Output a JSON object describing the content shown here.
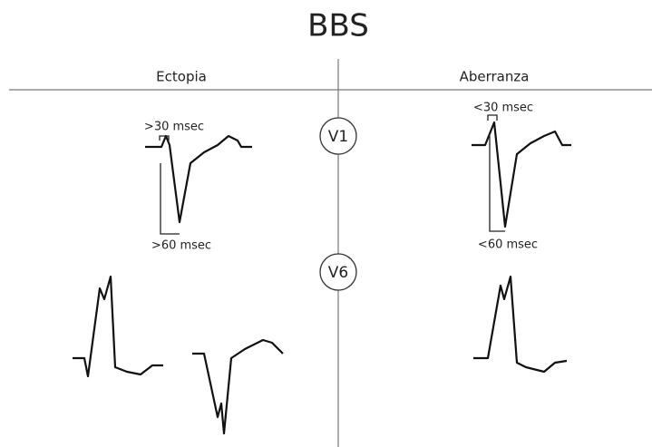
{
  "title": "BBS",
  "columns": {
    "left": "Ectopia",
    "right": "Aberranza"
  },
  "leads": {
    "v1": "V1",
    "v6": "V6"
  },
  "annotations": {
    "left_top": ">30 msec",
    "left_bottom": ">60 msec",
    "right_top": "<30 msec",
    "right_bottom": "<60 msec"
  }
}
